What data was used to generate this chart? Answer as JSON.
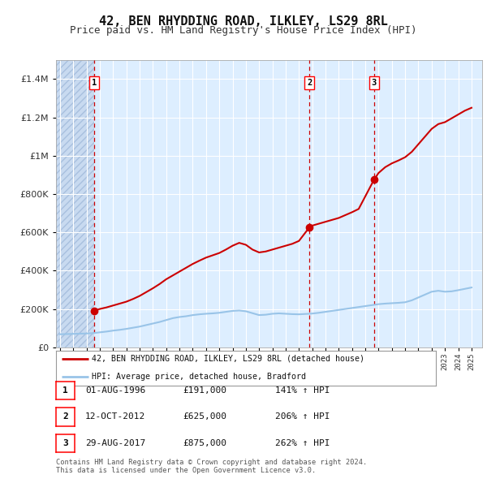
{
  "title": "42, BEN RHYDDING ROAD, ILKLEY, LS29 8RL",
  "subtitle": "Price paid vs. HM Land Registry's House Price Index (HPI)",
  "title_fontsize": 11,
  "subtitle_fontsize": 9,
  "background_color": "#ffffff",
  "plot_bg_color": "#ddeeff",
  "ylim": [
    0,
    1500000
  ],
  "yticks": [
    0,
    200000,
    400000,
    600000,
    800000,
    1000000,
    1200000,
    1400000
  ],
  "ytick_labels": [
    "£0",
    "£200K",
    "£400K",
    "£600K",
    "£800K",
    "£1M",
    "£1.2M",
    "£1.4M"
  ],
  "hpi_line_color": "#99c4e8",
  "price_line_color": "#cc0000",
  "marker_color": "#cc0000",
  "dashed_vline_color": "#cc0000",
  "sale_dates": [
    1996.58,
    2012.78,
    2017.66
  ],
  "sale_prices": [
    191000,
    625000,
    875000
  ],
  "sale_labels": [
    "1",
    "2",
    "3"
  ],
  "sale_info": [
    {
      "num": "1",
      "date": "01-AUG-1996",
      "price": "£191,000",
      "hpi": "141% ↑ HPI"
    },
    {
      "num": "2",
      "date": "12-OCT-2012",
      "price": "£625,000",
      "hpi": "206% ↑ HPI"
    },
    {
      "num": "3",
      "date": "29-AUG-2017",
      "price": "£875,000",
      "hpi": "262% ↑ HPI"
    }
  ],
  "legend_line1": "42, BEN RHYDDING ROAD, ILKLEY, LS29 8RL (detached house)",
  "legend_line2": "HPI: Average price, detached house, Bradford",
  "footnote1": "Contains HM Land Registry data © Crown copyright and database right 2024.",
  "footnote2": "This data is licensed under the Open Government Licence v3.0.",
  "hpi_data": [
    [
      1994.0,
      68000
    ],
    [
      1994.5,
      69000
    ],
    [
      1995.0,
      70000
    ],
    [
      1995.5,
      71000
    ],
    [
      1996.0,
      72000
    ],
    [
      1996.5,
      74000
    ],
    [
      1997.0,
      78000
    ],
    [
      1997.5,
      82000
    ],
    [
      1998.0,
      87000
    ],
    [
      1998.5,
      91000
    ],
    [
      1999.0,
      96000
    ],
    [
      1999.5,
      102000
    ],
    [
      2000.0,
      108000
    ],
    [
      2000.5,
      116000
    ],
    [
      2001.0,
      124000
    ],
    [
      2001.5,
      132000
    ],
    [
      2002.0,
      142000
    ],
    [
      2002.5,
      152000
    ],
    [
      2003.0,
      158000
    ],
    [
      2003.5,
      162000
    ],
    [
      2004.0,
      168000
    ],
    [
      2004.5,
      172000
    ],
    [
      2005.0,
      175000
    ],
    [
      2005.5,
      177000
    ],
    [
      2006.0,
      180000
    ],
    [
      2006.5,
      185000
    ],
    [
      2007.0,
      190000
    ],
    [
      2007.5,
      192000
    ],
    [
      2008.0,
      188000
    ],
    [
      2008.5,
      178000
    ],
    [
      2009.0,
      168000
    ],
    [
      2009.5,
      170000
    ],
    [
      2010.0,
      175000
    ],
    [
      2010.5,
      177000
    ],
    [
      2011.0,
      175000
    ],
    [
      2011.5,
      173000
    ],
    [
      2012.0,
      172000
    ],
    [
      2012.5,
      174000
    ],
    [
      2013.0,
      176000
    ],
    [
      2013.5,
      180000
    ],
    [
      2014.0,
      185000
    ],
    [
      2014.5,
      190000
    ],
    [
      2015.0,
      195000
    ],
    [
      2015.5,
      200000
    ],
    [
      2016.0,
      205000
    ],
    [
      2016.5,
      210000
    ],
    [
      2017.0,
      215000
    ],
    [
      2017.5,
      220000
    ],
    [
      2018.0,
      225000
    ],
    [
      2018.5,
      228000
    ],
    [
      2019.0,
      230000
    ],
    [
      2019.5,
      232000
    ],
    [
      2020.0,
      235000
    ],
    [
      2020.5,
      245000
    ],
    [
      2021.0,
      260000
    ],
    [
      2021.5,
      275000
    ],
    [
      2022.0,
      290000
    ],
    [
      2022.5,
      295000
    ],
    [
      2023.0,
      290000
    ],
    [
      2023.5,
      292000
    ],
    [
      2024.0,
      298000
    ],
    [
      2024.5,
      305000
    ],
    [
      2025.0,
      312000
    ]
  ],
  "price_data": [
    [
      1996.58,
      191000
    ],
    [
      1997.0,
      200000
    ],
    [
      1997.5,
      208000
    ],
    [
      1998.0,
      218000
    ],
    [
      1998.5,
      228000
    ],
    [
      1999.0,
      238000
    ],
    [
      1999.5,
      252000
    ],
    [
      2000.0,
      268000
    ],
    [
      2000.5,
      288000
    ],
    [
      2001.0,
      308000
    ],
    [
      2001.5,
      330000
    ],
    [
      2002.0,
      355000
    ],
    [
      2002.5,
      375000
    ],
    [
      2003.0,
      395000
    ],
    [
      2003.5,
      415000
    ],
    [
      2004.0,
      435000
    ],
    [
      2004.5,
      452000
    ],
    [
      2005.0,
      468000
    ],
    [
      2005.5,
      480000
    ],
    [
      2006.0,
      492000
    ],
    [
      2006.5,
      510000
    ],
    [
      2007.0,
      530000
    ],
    [
      2007.5,
      545000
    ],
    [
      2008.0,
      535000
    ],
    [
      2008.5,
      510000
    ],
    [
      2009.0,
      495000
    ],
    [
      2009.5,
      500000
    ],
    [
      2010.0,
      510000
    ],
    [
      2010.5,
      520000
    ],
    [
      2011.0,
      530000
    ],
    [
      2011.5,
      540000
    ],
    [
      2012.0,
      555000
    ],
    [
      2012.78,
      625000
    ],
    [
      2013.0,
      635000
    ],
    [
      2013.5,
      645000
    ],
    [
      2014.0,
      655000
    ],
    [
      2014.5,
      665000
    ],
    [
      2015.0,
      675000
    ],
    [
      2015.5,
      690000
    ],
    [
      2016.0,
      705000
    ],
    [
      2016.5,
      722000
    ],
    [
      2017.66,
      875000
    ],
    [
      2018.0,
      910000
    ],
    [
      2018.5,
      940000
    ],
    [
      2019.0,
      960000
    ],
    [
      2019.5,
      975000
    ],
    [
      2020.0,
      992000
    ],
    [
      2020.5,
      1020000
    ],
    [
      2021.0,
      1060000
    ],
    [
      2021.5,
      1100000
    ],
    [
      2022.0,
      1140000
    ],
    [
      2022.5,
      1165000
    ],
    [
      2023.0,
      1175000
    ],
    [
      2023.5,
      1195000
    ],
    [
      2024.0,
      1215000
    ],
    [
      2024.5,
      1235000
    ],
    [
      2025.0,
      1250000
    ]
  ],
  "xmin": 1993.7,
  "xmax": 2025.8,
  "hatch_xend": 1996.58
}
